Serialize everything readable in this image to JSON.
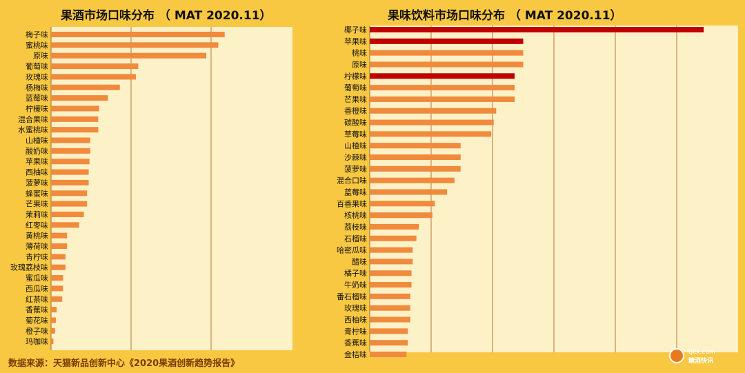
{
  "footer": {
    "source_text": "数据来源：天猫新品创新中心《2020果酒创新趋势报告》",
    "watermark_domain": "tjkx.com",
    "watermark_name": "糖酒快讯"
  },
  "colors": {
    "background": "#f9c842",
    "plot_background": "#fdf1c8",
    "bar": "#f08a3c",
    "bar_highlight": "#c00000",
    "gridline": "#b5773b"
  },
  "chart_data": [
    {
      "type": "bar",
      "orientation": "horizontal",
      "title": "果酒市场口味分布 （ MAT 2020.11）",
      "categories": [
        "梅子味",
        "蜜桃味",
        "原味",
        "葡萄味",
        "玫瑰味",
        "杨梅味",
        "蓝莓味",
        "柠檬味",
        "混合果味",
        "水蜜桃味",
        "山楂味",
        "酸奶味",
        "苹果味",
        "西柚味",
        "菠萝味",
        "蜂蜜味",
        "芒果味",
        "茉莉味",
        "红枣味",
        "黄桃味",
        "薄荷味",
        "青柠味",
        "玫瑰荔枝味",
        "蜜瓜味",
        "西瓜味",
        "红茶味",
        "香蕉味",
        "菊花味",
        "橙子味",
        "玛咖味"
      ],
      "values": [
        21.7,
        20.9,
        19.4,
        10.9,
        10.6,
        8.6,
        7.1,
        6.0,
        5.9,
        5.9,
        4.9,
        4.9,
        4.8,
        4.7,
        4.7,
        4.5,
        4.5,
        4.1,
        3.5,
        2.0,
        2.0,
        1.8,
        1.8,
        1.5,
        1.5,
        1.4,
        0.7,
        0.6,
        0.5,
        0.3
      ],
      "xlim": [
        0,
        25
      ],
      "gridlines": [
        10,
        20
      ],
      "grid": true,
      "highlighted": []
    },
    {
      "type": "bar",
      "orientation": "horizontal",
      "title": "果味饮料市场口味分布 （ MAT 2020.11）",
      "categories": [
        "椰子味",
        "苹果味",
        "桃味",
        "原味",
        "柠檬味",
        "葡萄味",
        "芒果味",
        "香橙味",
        "碳酸味",
        "草莓味",
        "山楂味",
        "沙棘味",
        "菠萝味",
        "混合口味",
        "蓝莓味",
        "百香果味",
        "核桃味",
        "荔枝味",
        "石榴味",
        "哈密瓜味",
        "醋味",
        "橘子味",
        "牛奶味",
        "番石榴味",
        "玫瑰味",
        "西柚味",
        "青柠味",
        "香蕉味",
        "金桔味"
      ],
      "values": [
        27.2,
        12.5,
        12.5,
        12.5,
        11.8,
        11.8,
        11.8,
        10.3,
        10.1,
        9.9,
        7.4,
        7.4,
        7.4,
        6.9,
        6.3,
        5.3,
        5.1,
        4.0,
        3.8,
        3.5,
        3.5,
        3.4,
        3.4,
        3.3,
        3.3,
        3.3,
        3.1,
        3.1,
        3.0
      ],
      "xlim": [
        0,
        30
      ],
      "gridlines": [
        5,
        10,
        15,
        20,
        25
      ],
      "grid": true,
      "highlighted": [
        "椰子味",
        "苹果味",
        "柠檬味"
      ]
    }
  ]
}
